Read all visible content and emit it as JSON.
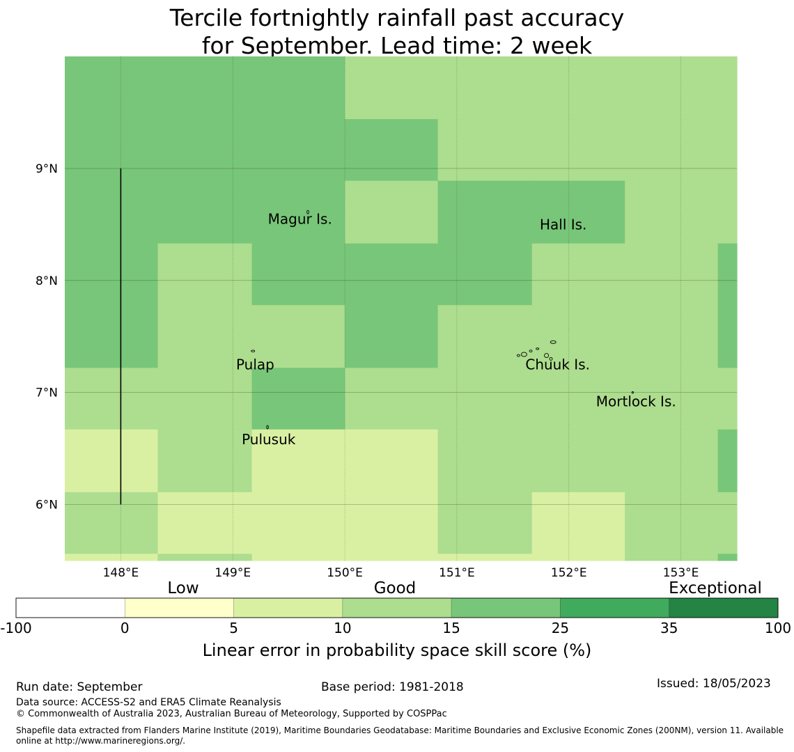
{
  "title": {
    "line1": "Tercile fortnightly rainfall past accuracy",
    "line2": "for September. Lead time: 2 week"
  },
  "map": {
    "lon_range": [
      147.5,
      153.5
    ],
    "lat_range": [
      5.5,
      10.0
    ],
    "lon_ticks": [
      {
        "value": 148,
        "label": "148°E"
      },
      {
        "value": 149,
        "label": "149°E"
      },
      {
        "value": 150,
        "label": "150°E"
      },
      {
        "value": 151,
        "label": "151°E"
      },
      {
        "value": 152,
        "label": "152°E"
      },
      {
        "value": 153,
        "label": "153°E"
      }
    ],
    "lat_ticks": [
      {
        "value": 9,
        "label": "9°N"
      },
      {
        "value": 8,
        "label": "8°N"
      },
      {
        "value": 7,
        "label": "7°N"
      },
      {
        "value": 6,
        "label": "6°N"
      }
    ],
    "grid_cols_lon": [
      147.5,
      148.33,
      149.17,
      150.0,
      150.83,
      151.67,
      152.5,
      153.33,
      153.5
    ],
    "grid_rows_lat": [
      10.0,
      9.44,
      8.89,
      8.33,
      7.78,
      7.22,
      6.67,
      6.11,
      5.56,
      5.5
    ],
    "skill_grid": [
      [
        25,
        25,
        25,
        15,
        15,
        15,
        15,
        15
      ],
      [
        25,
        25,
        25,
        25,
        15,
        15,
        15,
        15
      ],
      [
        25,
        25,
        25,
        15,
        25,
        25,
        15,
        15
      ],
      [
        25,
        15,
        25,
        25,
        25,
        15,
        15,
        25
      ],
      [
        25,
        15,
        15,
        25,
        15,
        15,
        15,
        25
      ],
      [
        15,
        15,
        25,
        15,
        15,
        15,
        15,
        15
      ],
      [
        10,
        15,
        10,
        10,
        15,
        15,
        15,
        25
      ],
      [
        15,
        10,
        10,
        10,
        15,
        10,
        15,
        15
      ],
      [
        10,
        15,
        10,
        10,
        10,
        10,
        15,
        25
      ]
    ],
    "boundary_line": {
      "lon": 148.0,
      "lat_from": 6.0,
      "lat_to": 9.0
    },
    "places": [
      {
        "name": "Magur Is.",
        "lon": 149.6,
        "lat": 8.55
      },
      {
        "name": "Hall Is.",
        "lon": 151.95,
        "lat": 8.5
      },
      {
        "name": "Pulap",
        "lon": 149.2,
        "lat": 7.25
      },
      {
        "name": "Chuuk Is.",
        "lon": 151.9,
        "lat": 7.25
      },
      {
        "name": "Mortlock Is.",
        "lon": 152.6,
        "lat": 6.92
      },
      {
        "name": "Pulusuk",
        "lon": 149.32,
        "lat": 6.58
      }
    ]
  },
  "colorbar": {
    "category_labels": [
      "Low",
      "Good",
      "Exceptional"
    ],
    "boundaries": [
      "-100",
      "0",
      "5",
      "10",
      "15",
      "25",
      "35",
      "100"
    ],
    "colors": [
      "#ffffff",
      "#ffffcc",
      "#d9f0a3",
      "#addd8e",
      "#78c679",
      "#41ab5d",
      "#238443"
    ],
    "xlabel": "Linear error in probability space skill score (%)"
  },
  "skill_colors": {
    "10": "#d9f0a3",
    "15": "#addd8e",
    "25": "#78c679"
  },
  "footer": {
    "run_date": "Run date: September",
    "base_period": "Base period: 1981-2018",
    "issued": "Issued: 18/05/2023",
    "data_source": "Data source: ACCESS-S2 and ERA5 Climate Reanalysis",
    "copyright": "© Commonwealth of Australia 2023, Australian Bureau of Meteorology, Supported by COSPPac",
    "shapefile": "Shapefile data extracted from Flanders Marine Institute (2019), Maritime Boundaries Geodatabase: Maritime Boundaries and Exclusive Economic Zones (200NM), version 11. Available online at http://www.marineregions.org/."
  }
}
